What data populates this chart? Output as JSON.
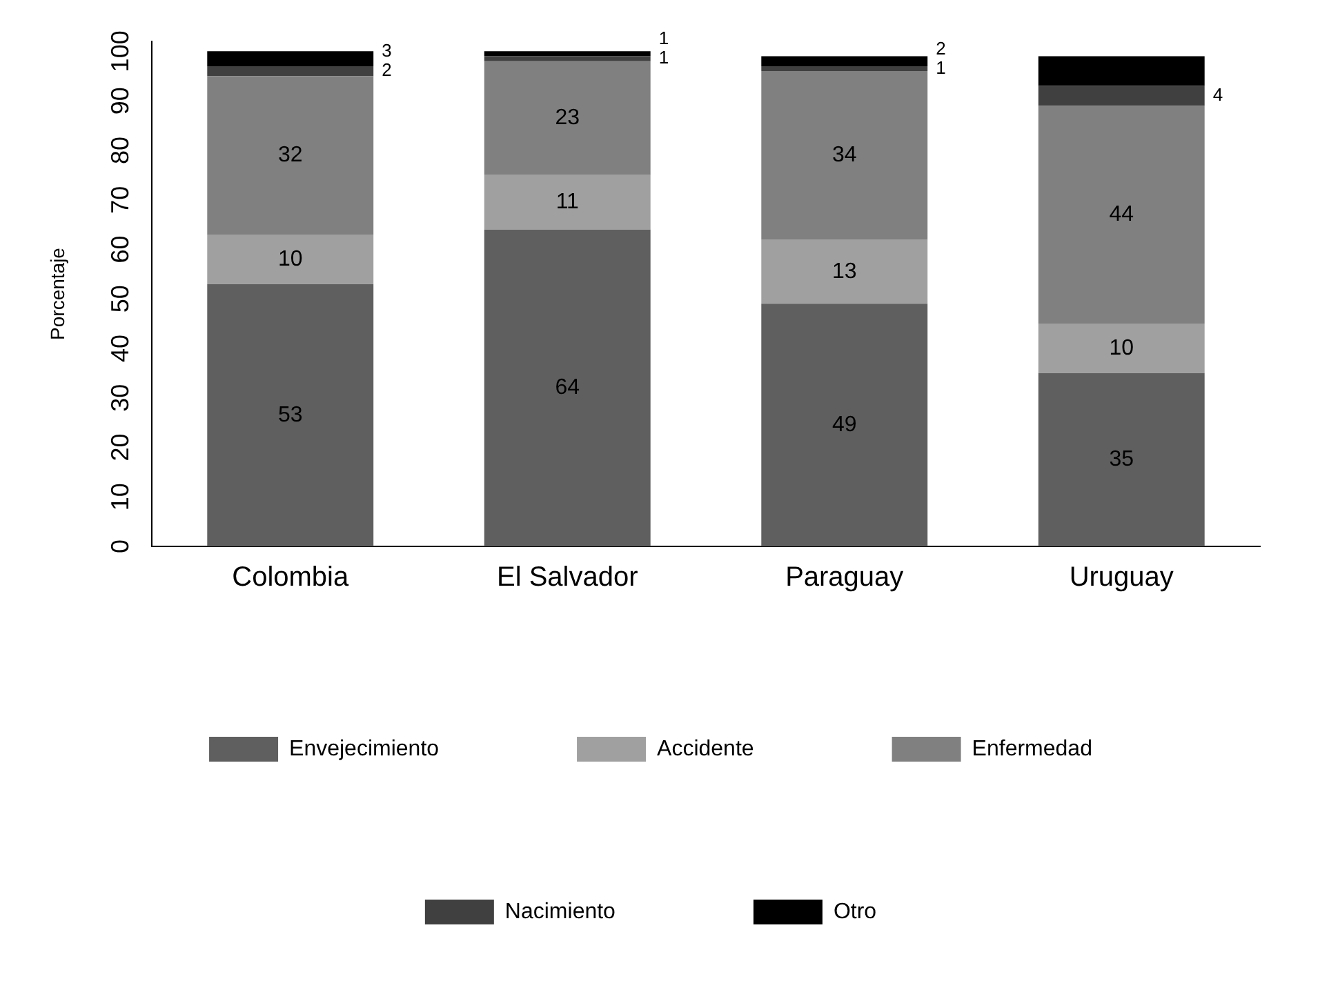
{
  "chart_data": {
    "type": "bar",
    "stacked": true,
    "ylabel": "Porcentaje",
    "categories": [
      "Colombia",
      "El Salvador",
      "Paraguay",
      "Uruguay"
    ],
    "ylim": [
      0,
      102
    ],
    "yticks": [
      0,
      10,
      20,
      30,
      40,
      50,
      60,
      70,
      80,
      90,
      100
    ],
    "grid": false,
    "legend": "bottom",
    "series": [
      {
        "name": "Envejecimiento",
        "color": "#5f5f5f",
        "values": [
          53,
          64,
          49,
          35
        ],
        "value_labels": [
          "53",
          "64",
          "49",
          "35"
        ]
      },
      {
        "name": "Accidente",
        "color": "#a0a0a0",
        "values": [
          10,
          11,
          13,
          10
        ],
        "value_labels": [
          "10",
          "11",
          "13",
          "10"
        ]
      },
      {
        "name": "Enfermedad",
        "color": "#808080",
        "values": [
          32,
          23,
          34,
          44
        ],
        "value_labels": [
          "32",
          "23",
          "34",
          "44"
        ]
      },
      {
        "name": "Nacimiento",
        "color": "#404040",
        "values": [
          2,
          1,
          1,
          4
        ],
        "value_labels": [
          "2",
          "1",
          "1",
          "4"
        ]
      },
      {
        "name": "Otro",
        "color": "#000000",
        "values": [
          3,
          1,
          2,
          6
        ],
        "value_labels": [
          "3",
          "1",
          "2",
          null
        ]
      }
    ]
  }
}
